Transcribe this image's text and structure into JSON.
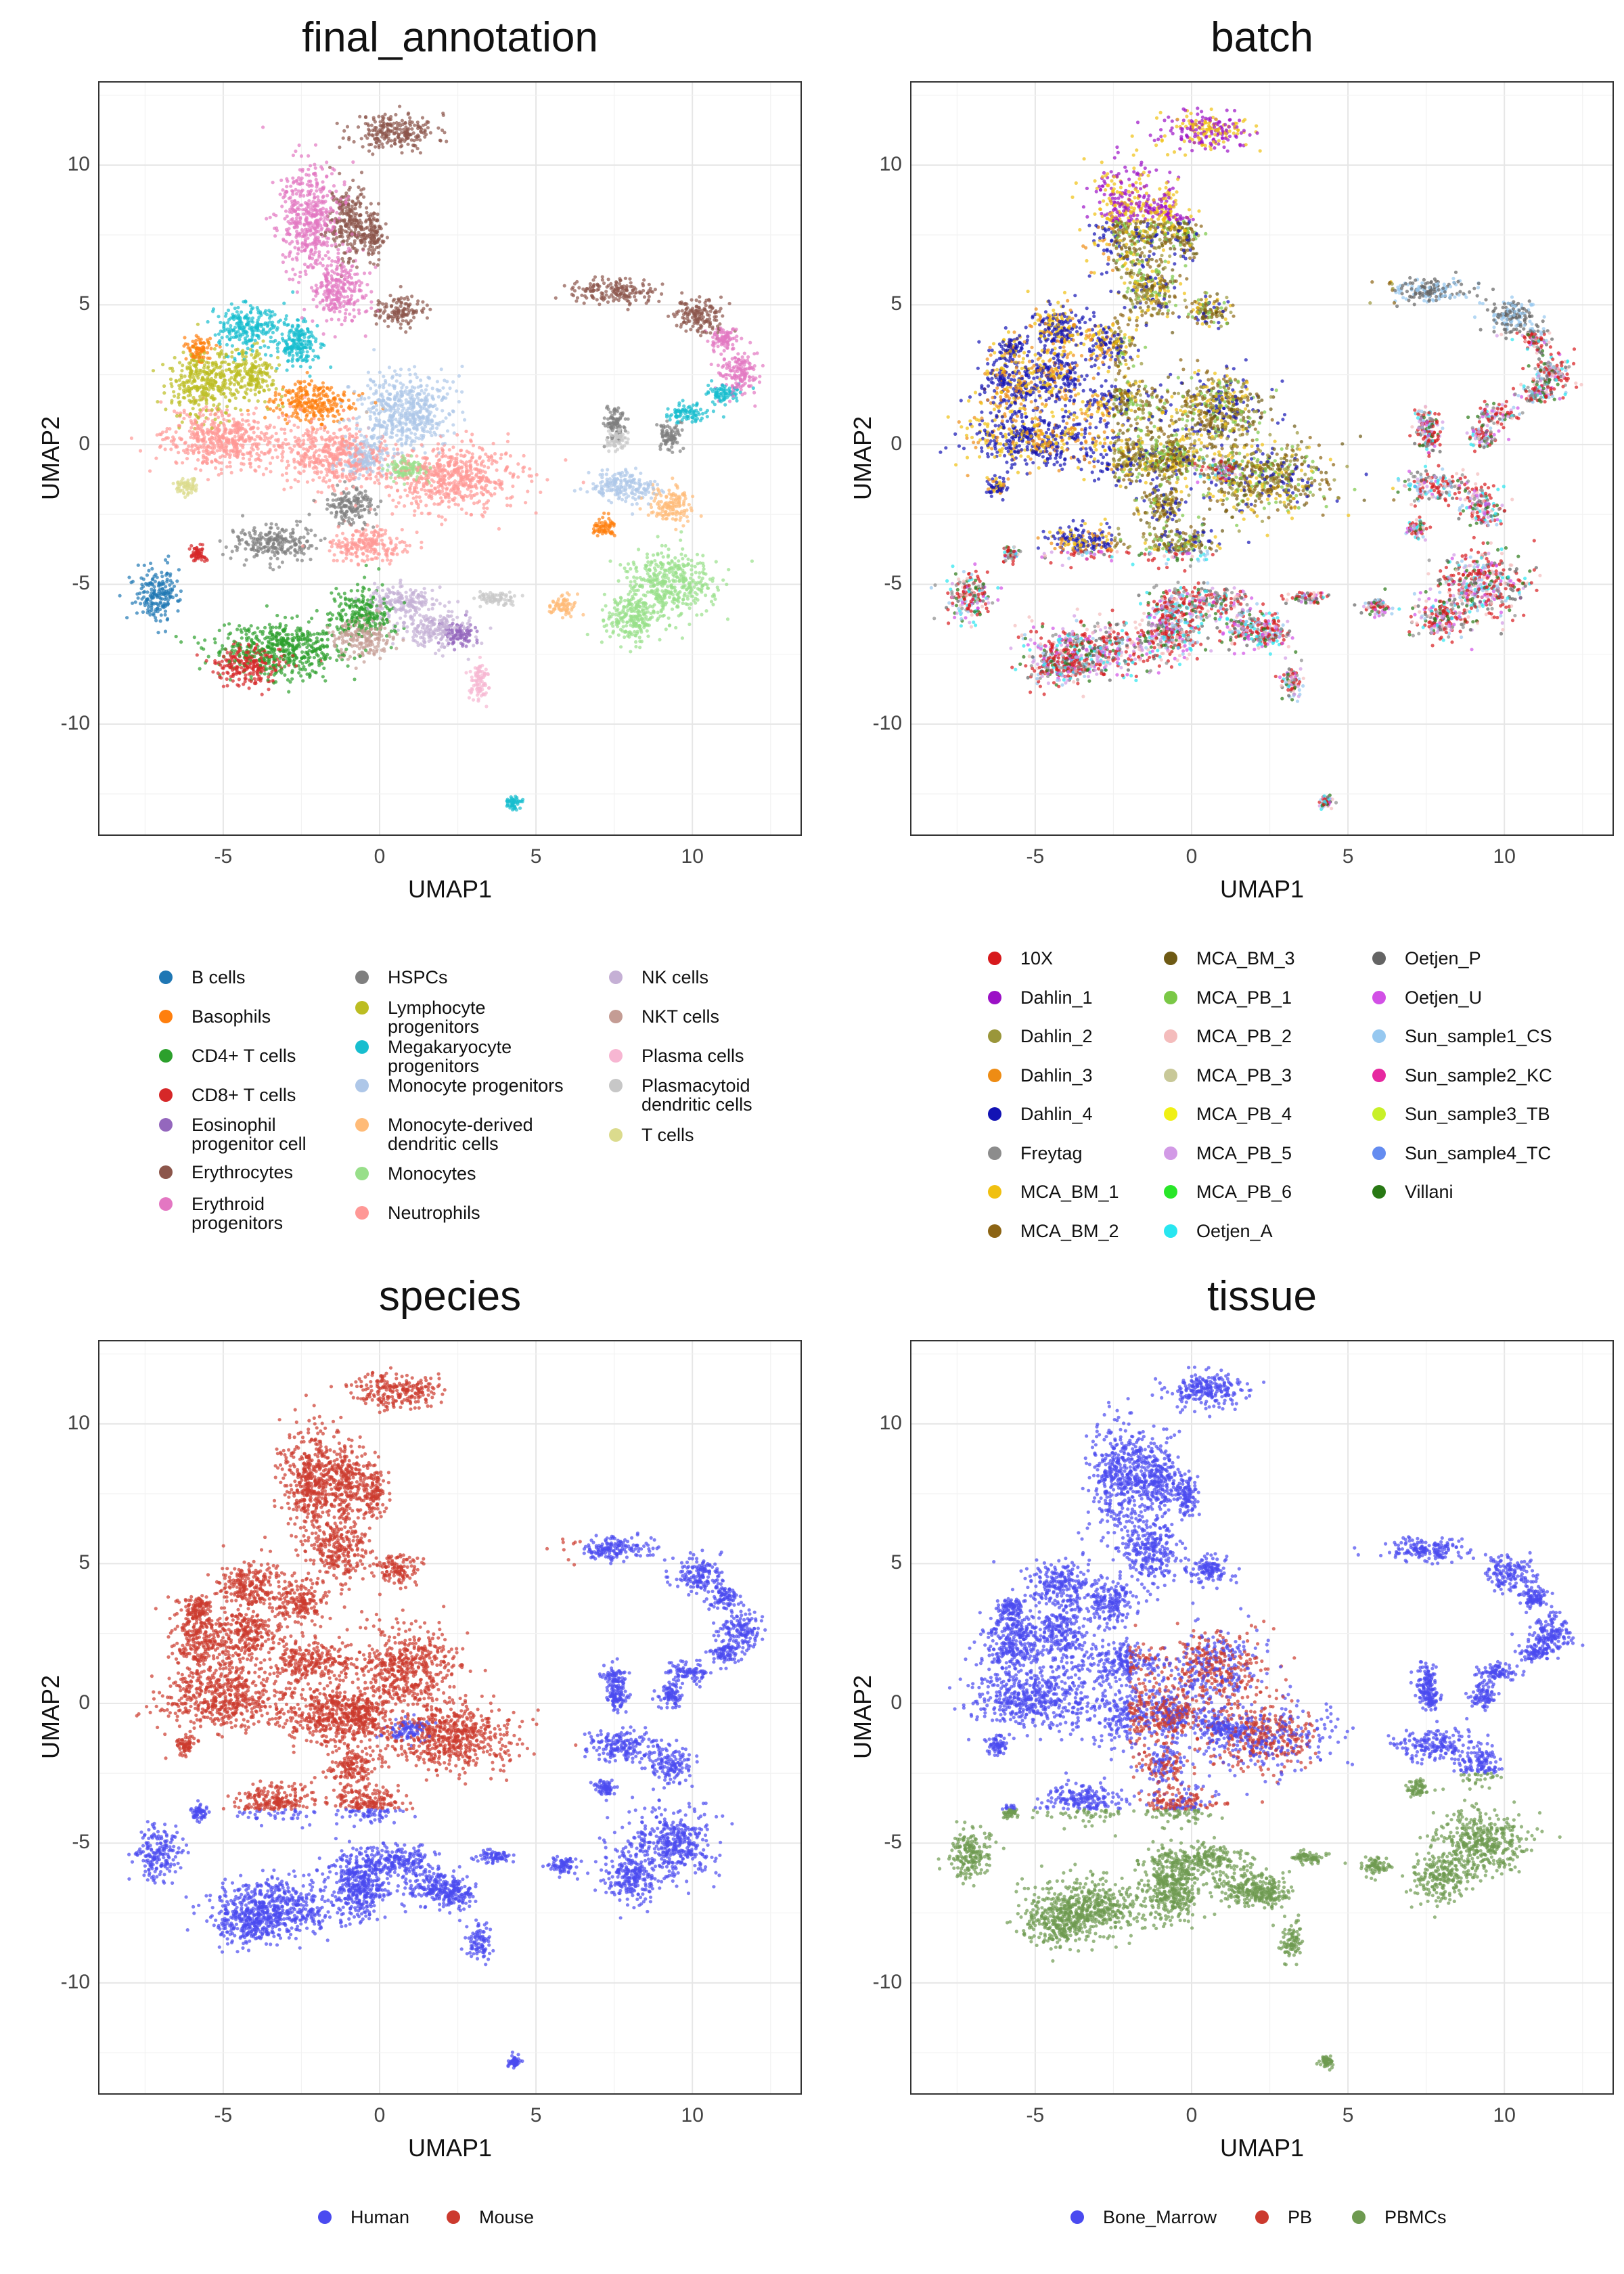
{
  "chart_data": [
    {
      "type": "scatter",
      "title": "final_annotation",
      "xlabel": "UMAP1",
      "ylabel": "UMAP2",
      "xlim": [
        -9,
        13.5
      ],
      "ylim": [
        -14,
        13
      ],
      "xticks": [
        -5,
        0,
        5,
        10
      ],
      "yticks": [
        10,
        5,
        0,
        -5,
        -10
      ],
      "grid": true,
      "legend_position": "bottom",
      "legend": [
        {
          "label": "B cells",
          "color": "#1f77b4"
        },
        {
          "label": "Basophils",
          "color": "#ff7f0e"
        },
        {
          "label": "CD4+ T cells",
          "color": "#2ca02c"
        },
        {
          "label": "CD8+ T cells",
          "color": "#d62728"
        },
        {
          "label": "Eosinophil\nprogenitor cell",
          "color": "#9467bd"
        },
        {
          "label": "Erythrocytes",
          "color": "#8c564b"
        },
        {
          "label": "Erythroid\nprogenitors",
          "color": "#e377c2"
        },
        {
          "label": "HSPCs",
          "color": "#7f7f7f"
        },
        {
          "label": "Lymphocyte\nprogenitors",
          "color": "#bcbd22"
        },
        {
          "label": "Megakaryocyte\nprogenitors",
          "color": "#17becf"
        },
        {
          "label": "Monocyte progenitors",
          "color": "#aec7e8"
        },
        {
          "label": "Monocyte-derived\ndendritic cells",
          "color": "#ffbb78"
        },
        {
          "label": "Monocytes",
          "color": "#98df8a"
        },
        {
          "label": "Neutrophils",
          "color": "#ff9896"
        },
        {
          "label": "NK cells",
          "color": "#c5b0d5"
        },
        {
          "label": "NKT cells",
          "color": "#c49c94"
        },
        {
          "label": "Plasma cells",
          "color": "#f7b6d2"
        },
        {
          "label": "Plasmacytoid\ndendritic cells",
          "color": "#c7c7c7"
        },
        {
          "label": "T cells",
          "color": "#dbdb8d"
        }
      ],
      "clusters": [
        {
          "name": "Erythrocytes",
          "points": [
            [
              0.5,
              11.2,
              1.2,
              0.6
            ],
            [
              -1,
              8,
              0.6,
              1.2
            ],
            [
              0.6,
              4.8,
              0.6,
              0.5
            ],
            [
              7.5,
              5.5,
              1.2,
              0.4
            ],
            [
              10.2,
              4.6,
              0.7,
              0.6
            ],
            [
              -0.2,
              7.5,
              0.35,
              0.8
            ]
          ]
        },
        {
          "name": "Erythroid progenitors",
          "points": [
            [
              -2.2,
              8,
              0.9,
              1.8
            ],
            [
              -1.3,
              5.5,
              0.8,
              1
            ],
            [
              11.5,
              2.5,
              0.6,
              0.7
            ],
            [
              11,
              3.8,
              0.4,
              0.4
            ]
          ]
        },
        {
          "name": "Megakaryocyte progenitors",
          "points": [
            [
              -4.2,
              4.2,
              0.9,
              0.8
            ],
            [
              -2.6,
              3.6,
              0.7,
              0.8
            ],
            [
              9.8,
              1.1,
              0.6,
              0.3
            ],
            [
              11,
              1.8,
              0.5,
              0.3
            ],
            [
              4.3,
              -12.8,
              0.2,
              0.2
            ]
          ]
        },
        {
          "name": "Lymphocyte progenitors",
          "points": [
            [
              -5.7,
              2.2,
              0.9,
              1.1
            ],
            [
              -4.2,
              2.5,
              0.8,
              0.9
            ]
          ]
        },
        {
          "name": "Basophils",
          "points": [
            [
              -2.2,
              1.5,
              1.2,
              0.7
            ],
            [
              -5.8,
              3.4,
              0.4,
              0.4
            ],
            [
              7.2,
              -3,
              0.3,
              0.3
            ]
          ]
        },
        {
          "name": "HSPCs",
          "points": [
            [
              -3.4,
              -3.5,
              1.2,
              0.6
            ],
            [
              -0.9,
              -2.2,
              0.7,
              0.6
            ],
            [
              9.3,
              0.3,
              0.4,
              0.4
            ],
            [
              7.5,
              0.8,
              0.3,
              0.6
            ]
          ]
        },
        {
          "name": "Monocyte progenitors",
          "points": [
            [
              0.8,
              1.2,
              1.4,
              1.3
            ],
            [
              -0.5,
              -0.5,
              0.6,
              0.6
            ],
            [
              7.8,
              -1.5,
              1.1,
              0.5
            ]
          ]
        },
        {
          "name": "Neutrophils",
          "points": [
            [
              -5,
              0.2,
              1.8,
              1.0
            ],
            [
              -1.5,
              -0.4,
              1.5,
              1.0
            ],
            [
              2.3,
              -1.2,
              1.9,
              1.1
            ],
            [
              -0.4,
              -3.6,
              1.1,
              0.6
            ]
          ]
        },
        {
          "name": "Monocytes",
          "points": [
            [
              9.3,
              -5,
              1.3,
              1.1
            ],
            [
              8,
              -6.2,
              0.8,
              0.8
            ],
            [
              0.9,
              -0.9,
              0.6,
              0.4
            ]
          ]
        },
        {
          "name": "Monocyte-derived dendritic cells",
          "points": [
            [
              9.3,
              -2.2,
              0.6,
              0.6
            ],
            [
              5.9,
              -5.8,
              0.4,
              0.3
            ]
          ]
        },
        {
          "name": "B cells",
          "points": [
            [
              -7.1,
              -5.4,
              0.65,
              0.85
            ]
          ]
        },
        {
          "name": "CD4+ T cells",
          "points": [
            [
              -3.2,
              -7.3,
              1.9,
              0.9
            ],
            [
              -0.6,
              -6,
              0.9,
              0.8
            ]
          ]
        },
        {
          "name": "CD8+ T cells",
          "points": [
            [
              -4.2,
              -7.9,
              1.0,
              0.7
            ],
            [
              -5.8,
              -3.9,
              0.25,
              0.25
            ]
          ]
        },
        {
          "name": "NK cells",
          "points": [
            [
              1.8,
              -6.6,
              1.0,
              0.6
            ],
            [
              0.7,
              -5.6,
              1.0,
              0.5
            ]
          ]
        },
        {
          "name": "NKT cells",
          "points": [
            [
              -0.6,
              -6.9,
              0.8,
              0.7
            ]
          ]
        },
        {
          "name": "Plasma cells",
          "points": [
            [
              3.2,
              -8.5,
              0.3,
              0.6
            ]
          ]
        },
        {
          "name": "Plasmacytoid dendritic cells",
          "points": [
            [
              7.6,
              0.2,
              0.3,
              0.4
            ],
            [
              3.7,
              -5.5,
              0.6,
              0.2
            ]
          ]
        },
        {
          "name": "Eosinophil progenitor cell",
          "points": [
            [
              2.5,
              -6.8,
              0.5,
              0.4
            ]
          ]
        },
        {
          "name": "T cells",
          "points": [
            [
              -6.2,
              -1.5,
              0.3,
              0.3
            ]
          ]
        }
      ]
    },
    {
      "type": "scatter",
      "title": "batch",
      "xlabel": "UMAP1",
      "ylabel": "UMAP2",
      "xlim": [
        -9,
        13.5
      ],
      "ylim": [
        -14,
        13
      ],
      "xticks": [
        -5,
        0,
        5,
        10
      ],
      "yticks": [
        10,
        5,
        0,
        -5,
        -10
      ],
      "grid": true,
      "legend_position": "bottom",
      "legend": [
        {
          "label": "10X",
          "color": "#d7191c"
        },
        {
          "label": "Dahlin_1",
          "color": "#9b10c6"
        },
        {
          "label": "Dahlin_2",
          "color": "#9a963a"
        },
        {
          "label": "Dahlin_3",
          "color": "#ee8c14"
        },
        {
          "label": "Dahlin_4",
          "color": "#1212b4"
        },
        {
          "label": "Freytag",
          "color": "#8c8c8c"
        },
        {
          "label": "MCA_BM_1",
          "color": "#f0c010"
        },
        {
          "label": "MCA_BM_2",
          "color": "#8c6414"
        },
        {
          "label": "MCA_BM_3",
          "color": "#6e5a14"
        },
        {
          "label": "MCA_PB_1",
          "color": "#7ac846"
        },
        {
          "label": "MCA_PB_2",
          "color": "#f4bcbc"
        },
        {
          "label": "MCA_PB_3",
          "color": "#c8c898"
        },
        {
          "label": "MCA_PB_4",
          "color": "#f0f014"
        },
        {
          "label": "MCA_PB_5",
          "color": "#d29ae6"
        },
        {
          "label": "MCA_PB_6",
          "color": "#28e628"
        },
        {
          "label": "Oetjen_A",
          "color": "#28e6f0"
        },
        {
          "label": "Oetjen_P",
          "color": "#646464"
        },
        {
          "label": "Oetjen_U",
          "color": "#d250e6"
        },
        {
          "label": "Sun_sample1_CS",
          "color": "#96c8f0"
        },
        {
          "label": "Sun_sample2_KC",
          "color": "#e628a0"
        },
        {
          "label": "Sun_sample3_TB",
          "color": "#c8f028"
        },
        {
          "label": "Sun_sample4_TC",
          "color": "#648cf0"
        },
        {
          "label": "Villani",
          "color": "#287814"
        }
      ]
    },
    {
      "type": "scatter",
      "title": "species",
      "xlabel": "UMAP1",
      "ylabel": "UMAP2",
      "xlim": [
        -9,
        13.5
      ],
      "ylim": [
        -14,
        13
      ],
      "xticks": [
        -5,
        0,
        5,
        10
      ],
      "yticks": [
        10,
        5,
        0,
        -5,
        -10
      ],
      "grid": true,
      "legend_position": "bottom",
      "legend": [
        {
          "label": "Human",
          "color": "#4a4af0"
        },
        {
          "label": "Mouse",
          "color": "#cc3a2e"
        }
      ]
    },
    {
      "type": "scatter",
      "title": "tissue",
      "xlabel": "UMAP1",
      "ylabel": "UMAP2",
      "xlim": [
        -9,
        13.5
      ],
      "ylim": [
        -14,
        13
      ],
      "xticks": [
        -5,
        0,
        5,
        10
      ],
      "yticks": [
        10,
        5,
        0,
        -5,
        -10
      ],
      "grid": true,
      "legend_position": "bottom",
      "legend": [
        {
          "label": "Bone_Marrow",
          "color": "#4a4af0"
        },
        {
          "label": "PB",
          "color": "#cc3a2e"
        },
        {
          "label": "PBMCs",
          "color": "#6e9a50"
        }
      ]
    }
  ]
}
